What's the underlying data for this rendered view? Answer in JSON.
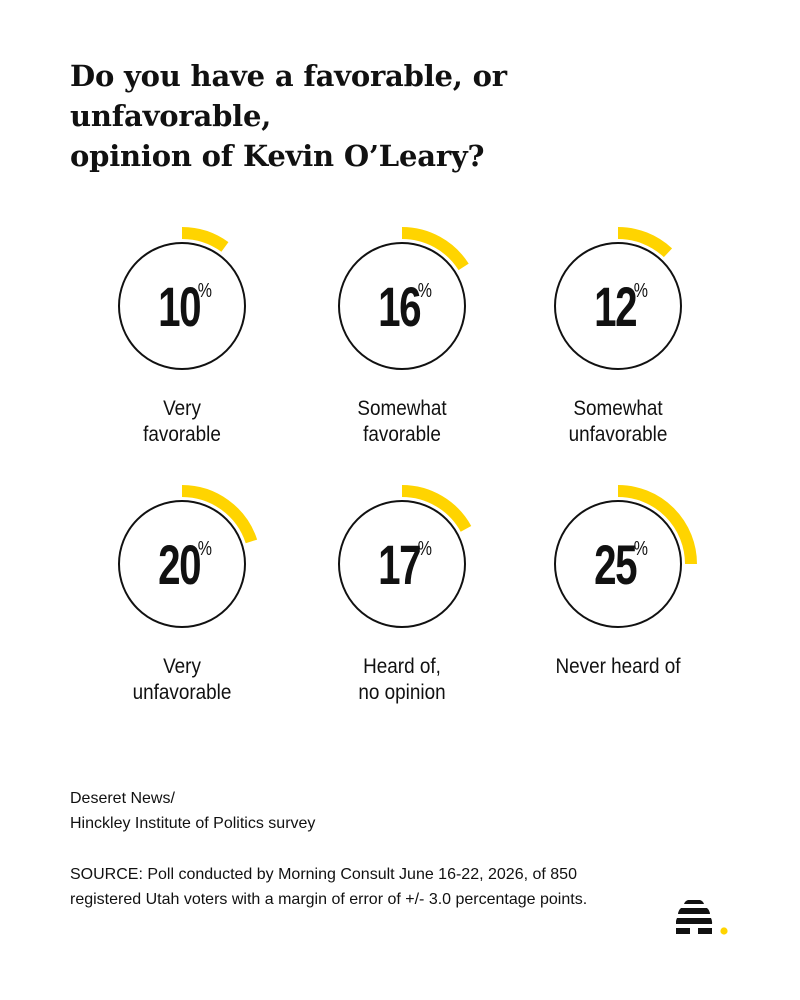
{
  "title_lines": [
    "Do you have a favorable, or unfavorable,",
    "opinion of Kevin O’Leary?"
  ],
  "chart_data": {
    "type": "pie",
    "unit": "%",
    "colors": {
      "arc": "#FFD400",
      "ring": "#111111"
    },
    "items": [
      {
        "value": 10,
        "label_lines": [
          "Very",
          "favorable"
        ]
      },
      {
        "value": 16,
        "label_lines": [
          "Somewhat",
          "favorable"
        ]
      },
      {
        "value": 12,
        "label_lines": [
          "Somewhat",
          "unfavorable"
        ]
      },
      {
        "value": 20,
        "label_lines": [
          "Very",
          "unfavorable"
        ]
      },
      {
        "value": 17,
        "label_lines": [
          "Heard of,",
          "no opinion"
        ]
      },
      {
        "value": 25,
        "label_lines": [
          "Never heard of"
        ]
      }
    ]
  },
  "credit_lines": [
    "Deseret News/",
    "Hinckley Institute of Politics survey"
  ],
  "source_text": "SOURCE: Poll conducted by Morning Consult June 16-22, 2026, of 850 registered Utah voters with a margin of error of +/- 3.0 percentage points.",
  "logo": {
    "icon": "beehive-icon",
    "dot_color": "#FFD400"
  }
}
